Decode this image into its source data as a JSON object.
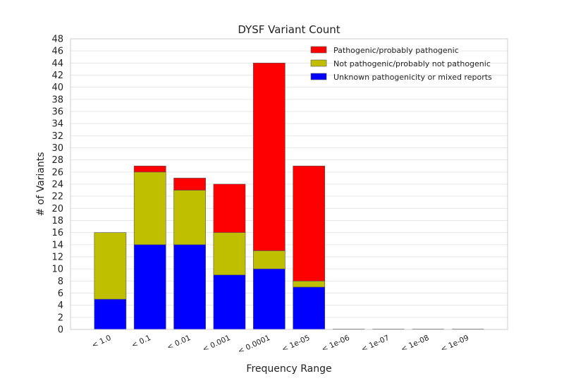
{
  "chart_data": {
    "type": "bar",
    "stacked": true,
    "title": "DYSF Variant Count",
    "xlabel": "Frequency Range",
    "ylabel": "# of Variants",
    "ylim": [
      0,
      48
    ],
    "yticks": [
      0,
      2,
      4,
      6,
      8,
      10,
      12,
      14,
      16,
      18,
      20,
      22,
      24,
      26,
      28,
      30,
      32,
      34,
      36,
      38,
      40,
      42,
      44,
      46,
      48
    ],
    "grid": true,
    "legend_position": "top-right",
    "categories": [
      "< 1.0",
      "< 0.1",
      "< 0.01",
      "< 0.001",
      "< 0.0001",
      "< 1e-05",
      "< 1e-06",
      "< 1e-07",
      "< 1e-08",
      "< 1e-09"
    ],
    "series": [
      {
        "name": "Unknown pathogenicity or mixed reports",
        "color": "#0000ff",
        "values": [
          5,
          14,
          14,
          9,
          10,
          7,
          0,
          0,
          0,
          0
        ]
      },
      {
        "name": "Not pathogenic/probably not pathogenic",
        "color": "#bfbf00",
        "values": [
          11,
          12,
          9,
          7,
          3,
          1,
          0,
          0,
          0,
          0
        ]
      },
      {
        "name": "Pathogenic/probably pathogenic",
        "color": "#ff0000",
        "values": [
          0,
          1,
          2,
          8,
          31,
          19,
          0,
          0,
          0,
          0
        ]
      }
    ],
    "legend_order": [
      2,
      1,
      0
    ]
  }
}
